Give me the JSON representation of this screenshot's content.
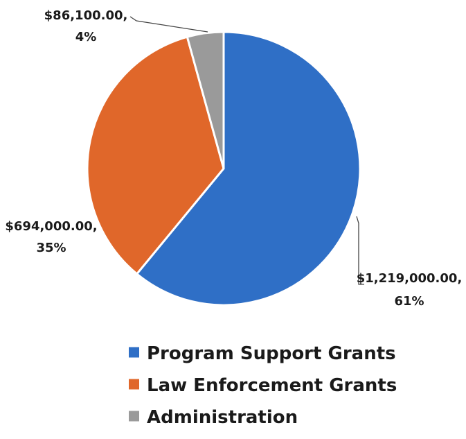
{
  "chart_data": {
    "type": "pie",
    "title": "",
    "categories": [
      "Program Support Grants",
      "Law Enforcement Grants",
      "Administration"
    ],
    "values": [
      1219000,
      694000,
      86100
    ],
    "percent_labels": [
      "61%",
      "35%",
      "4%"
    ],
    "value_labels": [
      "$1,219,000.00,",
      "$694,000.00,",
      "$86,100.00,"
    ],
    "colors": [
      "#2f6fc6",
      "#e0672a",
      "#9a9a9a"
    ],
    "start_angle_deg": 0,
    "direction": "clockwise",
    "legend": {
      "position": "bottom",
      "entries": [
        "Program Support Grants",
        "Law Enforcement Grants",
        "Administration"
      ]
    }
  }
}
